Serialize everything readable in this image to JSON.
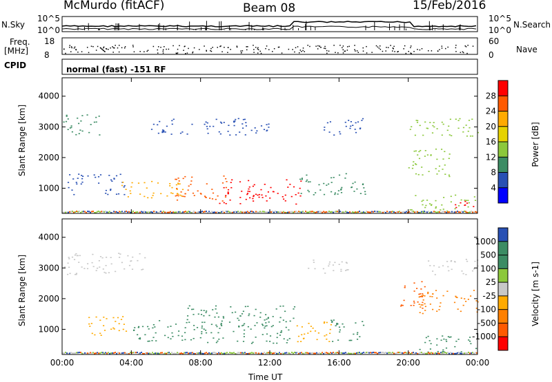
{
  "header": {
    "station": "McMurdo (fitACF)",
    "beam": "Beam 08",
    "date": "15/Feb/2016"
  },
  "panels": {
    "nsky_label": "N.Sky",
    "nsky_ticks": [
      "10^5",
      "10^0"
    ],
    "nsearch_label": "N.Search",
    "nsearch_ticks": [
      "10^5",
      "10^0"
    ],
    "freq_label_1": "Freq.",
    "freq_label_2": "[MHz]",
    "freq_ticks": [
      "18",
      "8"
    ],
    "nave_label": "Nave",
    "nave_ticks": [
      "60",
      "0"
    ],
    "cpid_label": "CPID",
    "cpid_text": "normal (fast) -151 RF"
  },
  "chart_data": [
    {
      "type": "heatmap",
      "title": "",
      "xlabel": "Time UT",
      "ylabel": "Slant Range [km]",
      "x_ticks": [
        "00:00",
        "04:00",
        "08:00",
        "12:00",
        "16:00",
        "20:00",
        "00:00"
      ],
      "xlim_hours": [
        0,
        24
      ],
      "y_ticks": [
        1000,
        2000,
        3000,
        4000
      ],
      "ylim": [
        180,
        4600
      ],
      "colorbar": {
        "label": "Power [dB]",
        "ticks": [
          "28",
          "24",
          "20",
          "16",
          "12",
          "8",
          "4"
        ],
        "colors": [
          "#ff0000",
          "#ff5a00",
          "#ffaa00",
          "#e6d200",
          "#8cc83c",
          "#3c8c64",
          "#2850b4",
          "#0000ff"
        ]
      },
      "blobs": [
        {
          "t0": 0.0,
          "t1": 2.2,
          "r0": 2750,
          "r1": 3450,
          "value": "#3c8c64"
        },
        {
          "t0": 0.3,
          "t1": 3.6,
          "r0": 800,
          "r1": 1500,
          "value": "#2850b4"
        },
        {
          "t0": 3.4,
          "t1": 7.0,
          "r0": 700,
          "r1": 1300,
          "value": "#ffaa00"
        },
        {
          "t0": 5.0,
          "t1": 12.0,
          "r0": 2750,
          "r1": 3300,
          "value": "#2850b4"
        },
        {
          "t0": 6.5,
          "t1": 9.5,
          "r0": 600,
          "r1": 1450,
          "value": "#ff5a00"
        },
        {
          "t0": 9.0,
          "t1": 13.8,
          "r0": 500,
          "r1": 1300,
          "value": "#ff0000"
        },
        {
          "t0": 13.6,
          "t1": 17.5,
          "r0": 800,
          "r1": 1500,
          "value": "#3c8c64"
        },
        {
          "t0": 15.0,
          "t1": 17.5,
          "r0": 2750,
          "r1": 3300,
          "value": "#2850b4"
        },
        {
          "t0": 20.0,
          "t1": 24.0,
          "r0": 2700,
          "r1": 3300,
          "value": "#8cc83c"
        },
        {
          "t0": 20.0,
          "t1": 22.5,
          "r0": 1400,
          "r1": 2300,
          "value": "#8cc83c"
        },
        {
          "t0": 20.0,
          "t1": 24.0,
          "r0": 200,
          "r1": 800,
          "value": "#8cc83c"
        },
        {
          "t0": 22.5,
          "t1": 24.0,
          "r0": 300,
          "r1": 600,
          "value": "#ff0000"
        }
      ]
    },
    {
      "type": "heatmap",
      "title": "",
      "xlabel": "Time UT",
      "ylabel": "Slant Range [km]",
      "x_ticks": [
        "00:00",
        "04:00",
        "08:00",
        "12:00",
        "16:00",
        "20:00",
        "00:00"
      ],
      "xlim_hours": [
        0,
        24
      ],
      "y_ticks": [
        1000,
        2000,
        3000,
        4000
      ],
      "ylim": [
        180,
        4600
      ],
      "colorbar": {
        "label": "Velocity [m s-1]",
        "ticks": [
          "1000",
          "500",
          "100",
          "25",
          "-25",
          "-100",
          "-500",
          "-1000"
        ],
        "colors": [
          "#2850b4",
          "#3c8c64",
          "#3c8c64",
          "#8cc83c",
          "#c8c8c8",
          "#ffaa00",
          "#ff8000",
          "#ff5a00",
          "#ff0000"
        ]
      },
      "blobs": [
        {
          "t0": 0.0,
          "t1": 4.8,
          "r0": 2800,
          "r1": 3500,
          "value": "#c8c8c8"
        },
        {
          "t0": 1.5,
          "t1": 3.8,
          "r0": 800,
          "r1": 1500,
          "value": "#ffaa00"
        },
        {
          "t0": 4.0,
          "t1": 7.0,
          "r0": 600,
          "r1": 1300,
          "value": "#3c8c64"
        },
        {
          "t0": 7.0,
          "t1": 13.5,
          "r0": 500,
          "r1": 1800,
          "value": "#3c8c64"
        },
        {
          "t0": 13.5,
          "t1": 15.5,
          "r0": 600,
          "r1": 1400,
          "value": "#ffaa00"
        },
        {
          "t0": 14.0,
          "t1": 16.5,
          "r0": 2800,
          "r1": 3300,
          "value": "#c8c8c8"
        },
        {
          "t0": 15.5,
          "t1": 17.5,
          "r0": 600,
          "r1": 1400,
          "value": "#3c8c64"
        },
        {
          "t0": 19.5,
          "t1": 21.0,
          "r0": 1600,
          "r1": 2600,
          "value": "#ff5a00"
        },
        {
          "t0": 20.5,
          "t1": 24.0,
          "r0": 1500,
          "r1": 2300,
          "value": "#ff8000"
        },
        {
          "t0": 21.0,
          "t1": 24.0,
          "r0": 2800,
          "r1": 3300,
          "value": "#c8c8c8"
        },
        {
          "t0": 20.5,
          "t1": 24.0,
          "r0": 250,
          "r1": 800,
          "value": "#3c8c64"
        }
      ]
    }
  ]
}
